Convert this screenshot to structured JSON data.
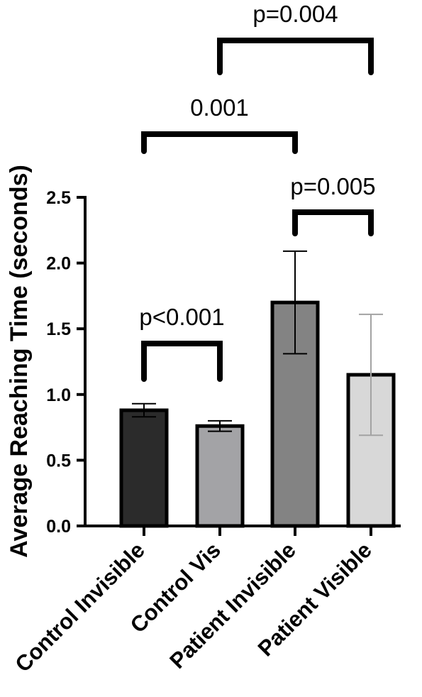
{
  "chart_data": {
    "type": "bar",
    "categories": [
      "Control Invisible",
      "Control Vis",
      "Patient Invisible",
      "Patient Visible"
    ],
    "values": [
      0.88,
      0.76,
      1.7,
      1.15
    ],
    "errors": [
      0.05,
      0.04,
      0.39,
      0.46
    ],
    "colors": [
      "#2b2b2b",
      "#a3a3a6",
      "#838383",
      "#d8d8d8"
    ],
    "error_colors": [
      "#000000",
      "#000000",
      "#000000",
      "#a3a3a3"
    ],
    "ylabel": "Average Reaching Time (seconds)",
    "ylim": [
      0,
      2.5
    ],
    "yticks": [
      "0.0",
      "0.5",
      "1.0",
      "1.5",
      "2.0",
      "2.5"
    ],
    "grid": false,
    "annotations": [
      {
        "from": 0,
        "to": 1,
        "label": "p<0.001"
      },
      {
        "from": 2,
        "to": 3,
        "label": "p=0.005"
      },
      {
        "from": 0,
        "to": 2,
        "label": "0.001"
      },
      {
        "from": 1,
        "to": 3,
        "label": "p=0.004"
      }
    ]
  }
}
